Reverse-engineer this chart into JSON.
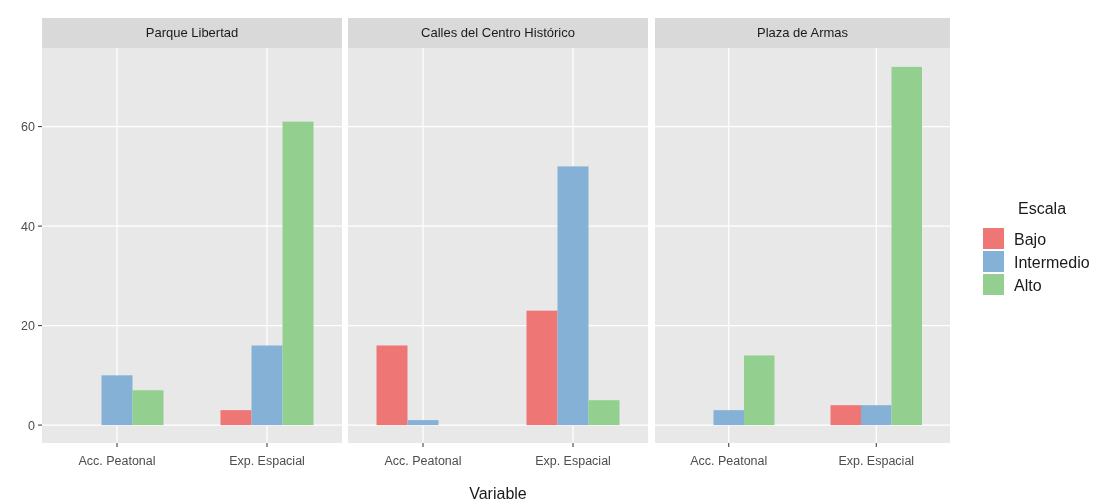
{
  "chart_data": [
    {
      "type": "bar",
      "title": "Parque Libertad",
      "categories": [
        "Acc. Peatonal",
        "Exp. Espacial"
      ],
      "series": [
        {
          "color": "#ee7675",
          "values": [
            null,
            3
          ]
        },
        {
          "color": "#86b1d6",
          "values": [
            10,
            16
          ]
        },
        {
          "color": "#93cf8e",
          "values": [
            7,
            61
          ]
        }
      ],
      "ylim": [
        -3.6,
        75.8
      ],
      "yticks": [
        0,
        20,
        40,
        60
      ],
      "grid": true,
      "legend": false
    },
    {
      "type": "bar",
      "title": "Calles del Centro Histórico",
      "xlabel": "Variable",
      "categories": [
        "Acc. Peatonal",
        "Exp. Espacial"
      ],
      "series": [
        {
          "color": "#ee7675",
          "values": [
            16,
            23
          ]
        },
        {
          "color": "#86b1d6",
          "values": [
            1,
            52
          ]
        },
        {
          "color": "#93cf8e",
          "values": [
            null,
            5
          ]
        }
      ],
      "ylim": [
        -3.6,
        75.8
      ],
      "yticks": [
        0,
        20,
        40,
        60
      ],
      "grid": true,
      "tick_labels": "x",
      "legend": false
    },
    {
      "type": "bar",
      "title": "Plaza de Armas",
      "categories": [
        "Acc. Peatonal",
        "Exp. Espacial"
      ],
      "series": [
        {
          "name": "Bajo",
          "color": "#ee7675",
          "values": [
            null,
            4
          ]
        },
        {
          "name": "Intermedio",
          "color": "#86b1d6",
          "values": [
            3,
            4
          ]
        },
        {
          "name": "Alto",
          "color": "#93cf8e",
          "values": [
            14,
            72
          ]
        }
      ],
      "ylim": [
        -3.6,
        75.8
      ],
      "yticks": [
        0,
        20,
        40,
        60
      ],
      "grid": true,
      "tick_labels": "x",
      "legend": "right",
      "legend_title": "Escala"
    }
  ]
}
